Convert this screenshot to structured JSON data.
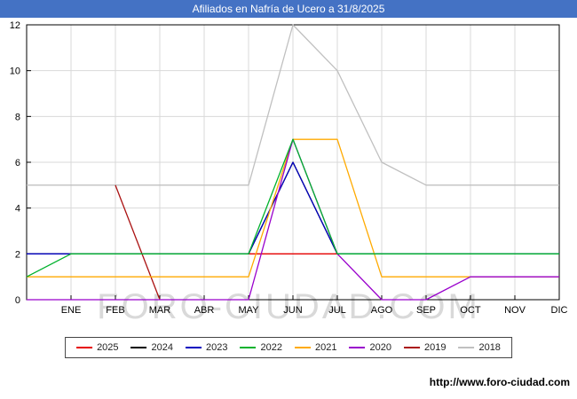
{
  "window": {
    "title": "Afiliados en Nafría de Ucero a 31/8/2025"
  },
  "watermark": "FORO-CIUDAD.COM",
  "footer": {
    "url_label": "http://www.foro-ciudad.com"
  },
  "colors": {
    "titlebar": "#4472c4",
    "gridline": "#d9d9d9",
    "plot_border": "#000000"
  },
  "chart_data": {
    "type": "line",
    "title": "Afiliados en Nafría de Ucero a 31/8/2025",
    "categories": [
      "ENE",
      "FEB",
      "MAR",
      "ABR",
      "MAY",
      "JUN",
      "JUL",
      "AGO",
      "SEP",
      "OCT",
      "NOV",
      "DIC"
    ],
    "ylim": [
      0,
      12
    ],
    "yticks": [
      0,
      2,
      4,
      6,
      8,
      10,
      12
    ],
    "grid": true,
    "legend_position": "bottom",
    "series": [
      {
        "name": "2025",
        "color": "#e60000",
        "start": null,
        "values": [
          2,
          2,
          2,
          2,
          2,
          2,
          2,
          null,
          null,
          null,
          null,
          null
        ]
      },
      {
        "name": "2024",
        "color": "#000000",
        "start": 2,
        "values": [
          2,
          2,
          2,
          2,
          2,
          6,
          2,
          2,
          2,
          2,
          2,
          2
        ]
      },
      {
        "name": "2023",
        "color": "#0000bf",
        "start": 2,
        "values": [
          2,
          2,
          2,
          2,
          2,
          6,
          2,
          2,
          2,
          2,
          2,
          2
        ]
      },
      {
        "name": "2022",
        "color": "#00b22d",
        "start": 1,
        "values": [
          2,
          2,
          2,
          2,
          2,
          7,
          2,
          2,
          2,
          2,
          2,
          2
        ]
      },
      {
        "name": "2021",
        "color": "#ffaa00",
        "start": 1,
        "values": [
          1,
          1,
          1,
          1,
          1,
          7,
          7,
          1,
          1,
          1,
          1,
          1
        ]
      },
      {
        "name": "2020",
        "color": "#9900cc",
        "start": 0,
        "values": [
          0,
          0,
          0,
          0,
          0,
          7,
          2,
          0,
          0,
          1,
          1,
          1
        ]
      },
      {
        "name": "2019",
        "color": "#aa1111",
        "start": null,
        "values": [
          null,
          5,
          0,
          null,
          null,
          null,
          null,
          null,
          null,
          null,
          null,
          null
        ]
      },
      {
        "name": "2018",
        "color": "#c0c0c0",
        "start": 5,
        "values": [
          5,
          5,
          5,
          5,
          5,
          12,
          10,
          6,
          5,
          5,
          5,
          5
        ]
      }
    ],
    "draw_order": [
      "2018",
      "2019",
      "2024",
      "2025",
      "2023",
      "2021",
      "2020",
      "2022"
    ]
  }
}
